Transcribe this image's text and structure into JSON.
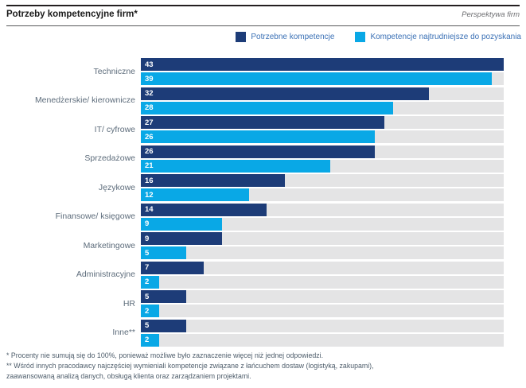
{
  "header": {
    "title": "Potrzeby kompetencyjne firm*",
    "perspective": "Perspektywa firm"
  },
  "legend": {
    "items": [
      {
        "label": "Potrzebne kompetencje",
        "color": "#1d3c78"
      },
      {
        "label": "Kompetencje najtrudniejsze do pozyskania",
        "color": "#09a8e6"
      }
    ]
  },
  "chart_data": {
    "type": "bar",
    "orientation": "horizontal",
    "title": "Potrzeby kompetencyjne firm*",
    "unit": "percent",
    "categories": [
      "Techniczne",
      "Menedżerskie/ kierownicze",
      "IT/ cyfrowe",
      "Sprzedażowe",
      "Językowe",
      "Finansowe/ księgowe",
      "Marketingowe",
      "Administracyjne",
      "HR",
      "Inne**"
    ],
    "series": [
      {
        "name": "Potrzebne kompetencje",
        "color": "#1d3c78",
        "values": [
          43,
          32,
          27,
          26,
          16,
          14,
          9,
          7,
          5,
          5
        ]
      },
      {
        "name": "Kompetencje najtrudniejsze do pozyskania",
        "color": "#09a8e6",
        "values": [
          39,
          28,
          26,
          21,
          12,
          9,
          5,
          2,
          2,
          2
        ]
      }
    ],
    "value_labels_shown": true,
    "axis_shown": false,
    "track_color": "#e4e4e5",
    "max_scale_value": 40.3,
    "legend_position": "top"
  },
  "footnotes": {
    "lines": [
      "* Procenty nie sumują się do 100%, ponieważ możliwe było zaznaczenie więcej niż jednej odpowiedzi.",
      "** Wśród innych pracodawcy najczęściej wymieniali kompetencje związane z łańcuchem dostaw (logistyką, zakupami),",
      "zaawansowaną analizą danych, obsługą klienta oraz zarządzaniem projektami."
    ]
  }
}
